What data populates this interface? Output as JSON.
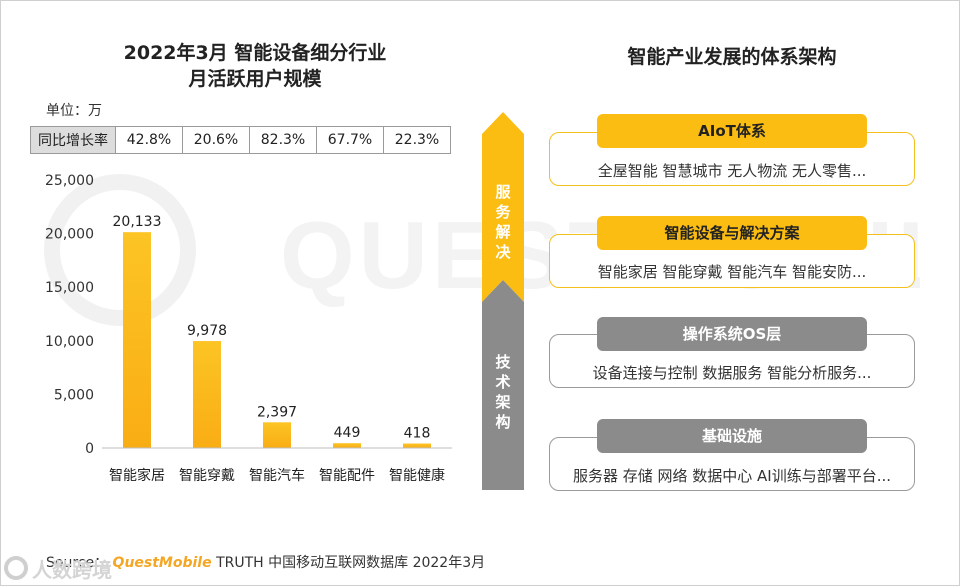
{
  "left": {
    "title_line1": "2022年3月 智能设备细分行业",
    "title_line2": "月活跃用户规模",
    "unit": "单位：万",
    "yoy_label": "同比增长率",
    "yoy_values": [
      "42.8%",
      "20.6%",
      "82.3%",
      "67.7%",
      "22.3%"
    ]
  },
  "chart_data": {
    "type": "bar",
    "title": "2022年3月 智能设备细分行业月活跃用户规模",
    "categories": [
      "智能家居",
      "智能穿戴",
      "智能汽车",
      "智能配件",
      "智能健康"
    ],
    "values": [
      20133,
      9978,
      2397,
      449,
      418
    ],
    "value_labels": [
      "20,133",
      "9,978",
      "2,397",
      "449",
      "418"
    ],
    "ylim": [
      0,
      25000
    ],
    "yticks": [
      0,
      5000,
      10000,
      15000,
      20000,
      25000
    ],
    "ytick_labels": [
      "0",
      "5,000",
      "10,000",
      "15,000",
      "20,000",
      "25,000"
    ],
    "bar_color": "#fbbd12",
    "ylabel": "万",
    "xlabel": ""
  },
  "right": {
    "title": "智能产业发展的体系架构",
    "arrow_top_label": "服务解决",
    "arrow_bottom_label": "技术架构",
    "layers": [
      {
        "name": "AIoT体系",
        "items": "全屋智能  智慧城市  无人物流  无人零售..."
      },
      {
        "name": "智能设备与解决方案",
        "items": "智能家居  智能穿戴  智能汽车  智能安防..."
      },
      {
        "name": "操作系统OS层",
        "items": "设备连接与控制  数据服务  智能分析服务..."
      },
      {
        "name": "基础设施",
        "items": "服务器  存储  网络  数据中心  AI训练与部署平台..."
      }
    ]
  },
  "footer": {
    "source_prefix": "Source：",
    "brand": "QuestMobile",
    "source_rest": " TRUTH 中国移动互联网数据库 2022年3月"
  },
  "watermark": {
    "text": "QUESTMOBILE"
  },
  "logo": {
    "text": "人数跨境"
  },
  "colors": {
    "yellow": "#fbbd12",
    "gray": "#8b8b8b"
  }
}
